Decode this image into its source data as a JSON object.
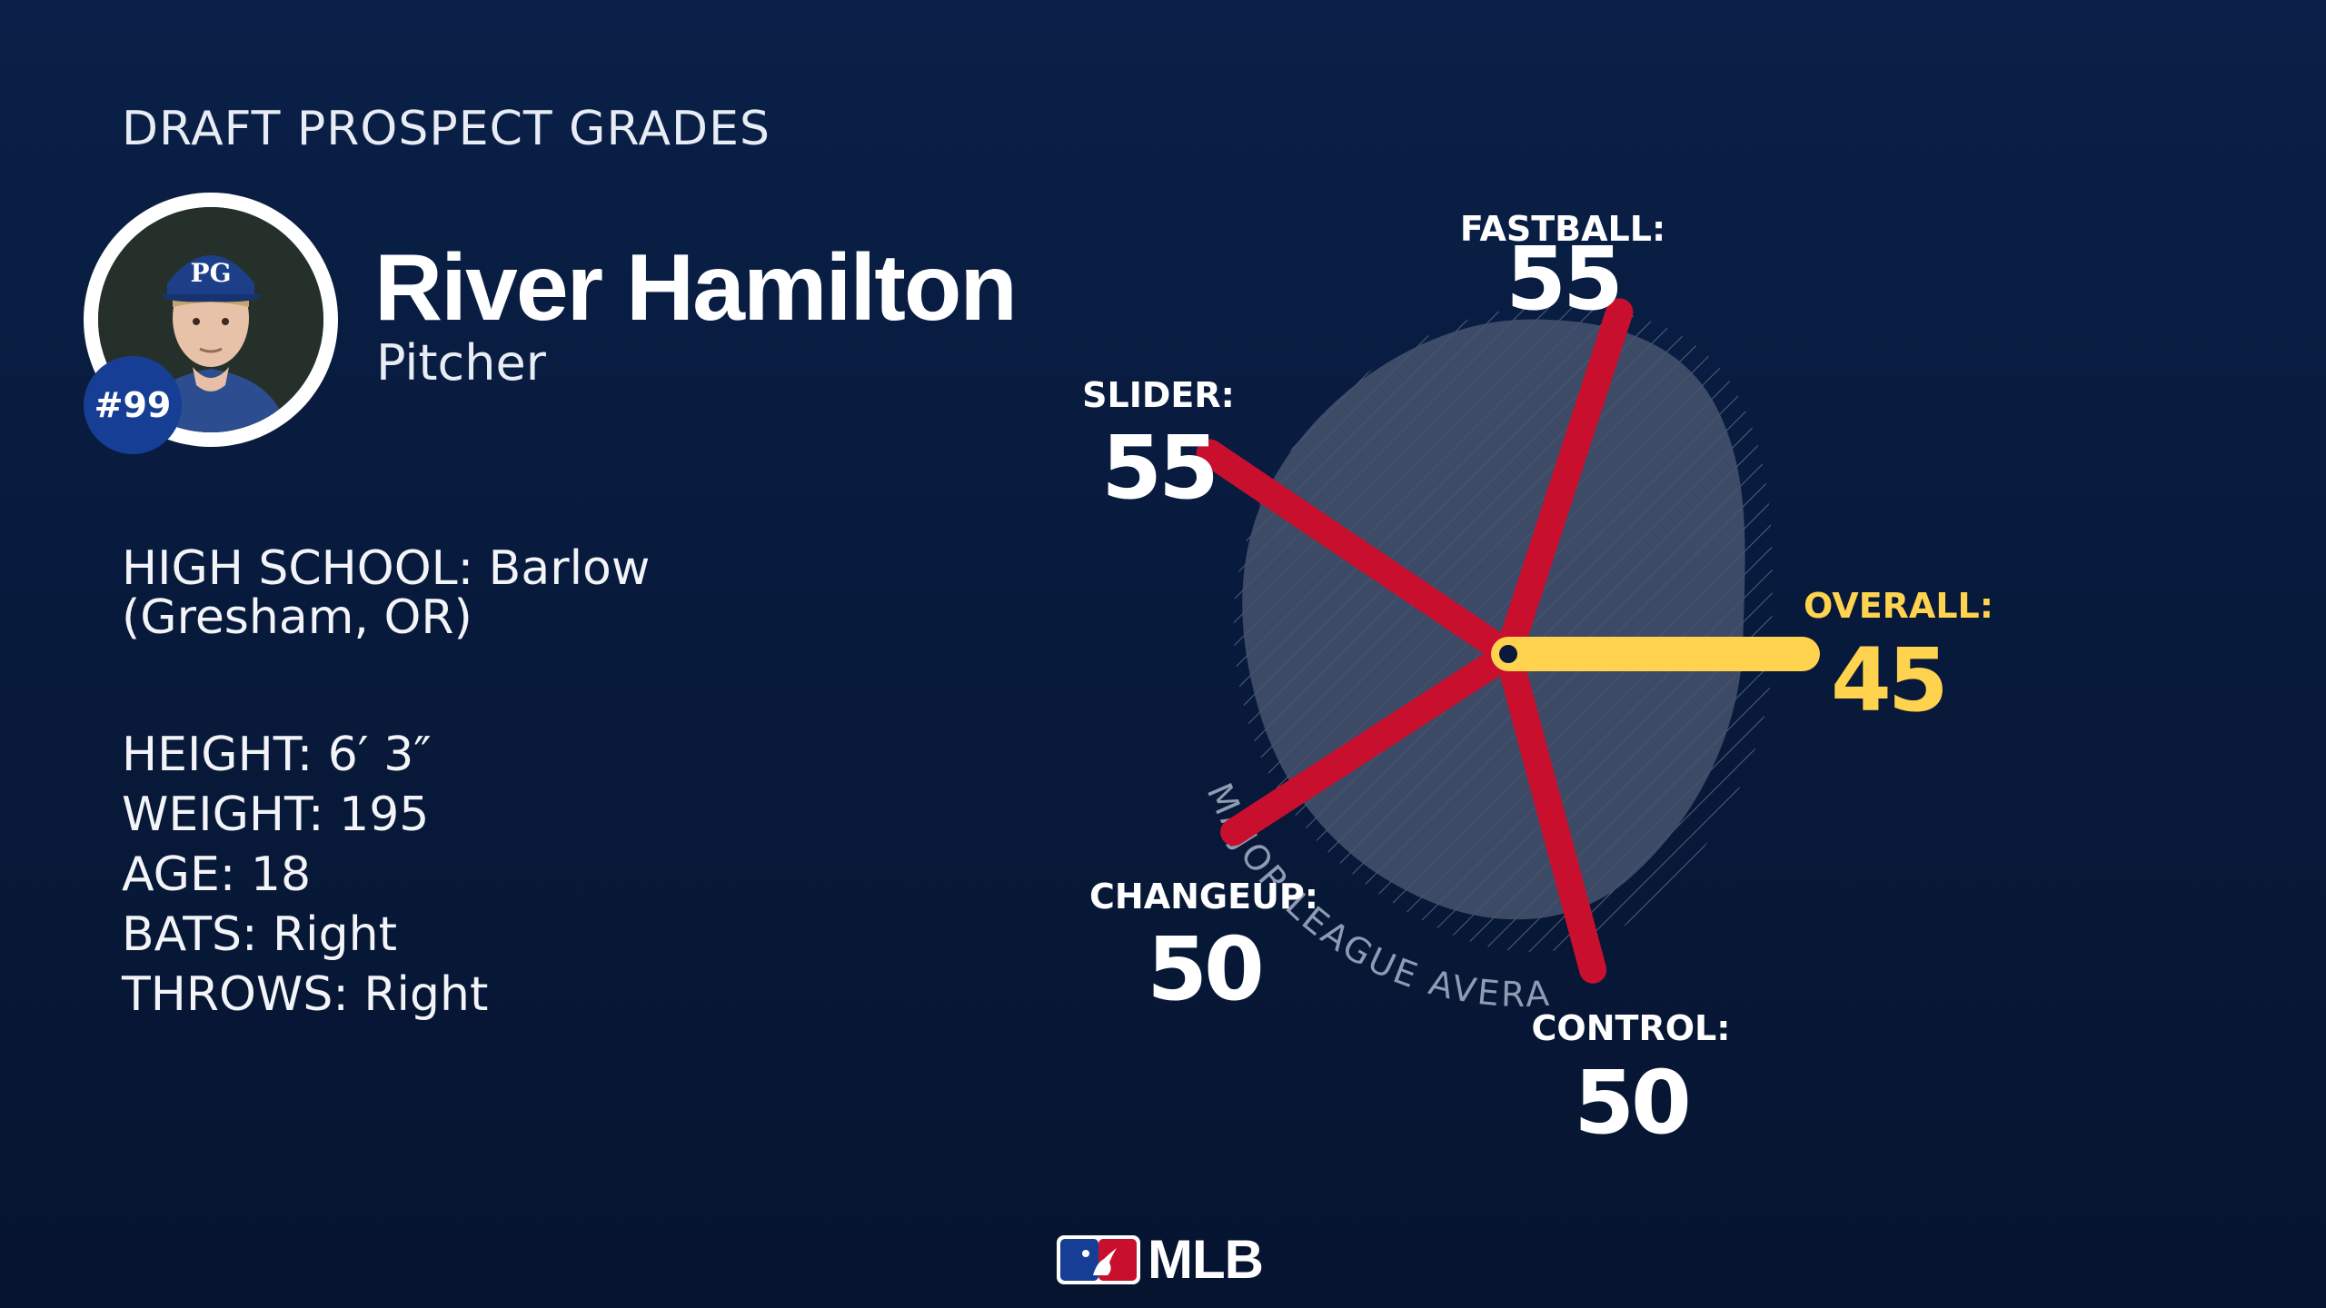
{
  "header": {
    "title": "DRAFT PROSPECT GRADES"
  },
  "player": {
    "name": "River Hamilton",
    "position": "Pitcher",
    "number": "#99",
    "photo_cap_letters": "PG"
  },
  "school": {
    "line1": "HIGH SCHOOL: Barlow",
    "line2": "(Gresham, OR)"
  },
  "stats": [
    "HEIGHT: 6′ 3″",
    "WEIGHT: 195",
    "AGE: 18",
    "BATS: Right",
    "THROWS: Right"
  ],
  "chart_data": {
    "type": "radar",
    "reference_label": "MAJOR LEAGUE AVERAGE",
    "colors": {
      "tool": "#c8102e",
      "overall": "#ffd34e",
      "reference_fill": "#46546f",
      "label": "#ffffff"
    },
    "axes": [
      {
        "label": "FASTBALL:",
        "value": 55
      },
      {
        "label": "OVERALL:",
        "value": 45,
        "highlight": true
      },
      {
        "label": "CONTROL:",
        "value": 50
      },
      {
        "label": "CHANGEUP:",
        "value": 50
      },
      {
        "label": "SLIDER:",
        "value": 55
      }
    ]
  },
  "footer": {
    "logo_text": "MLB"
  }
}
